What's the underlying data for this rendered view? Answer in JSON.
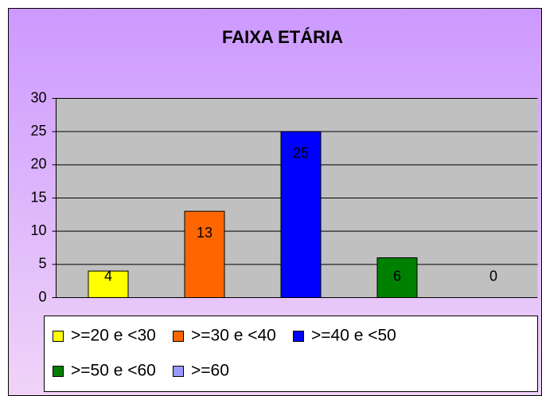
{
  "chart_data": {
    "type": "bar",
    "title": "FAIXA ETÁRIA",
    "categories": [
      ">=20 e <30",
      ">=30 e <40",
      ">=40 e <50",
      ">=50 e <60",
      ">=60"
    ],
    "values": [
      4,
      13,
      25,
      6,
      0
    ],
    "colors": [
      "#ffff00",
      "#ff6600",
      "#0000ff",
      "#008000",
      "#9999ff"
    ],
    "ylim": [
      0,
      30
    ],
    "yticks": [
      0,
      5,
      10,
      15,
      20,
      25,
      30
    ],
    "grid": true,
    "legend": "bottom"
  }
}
